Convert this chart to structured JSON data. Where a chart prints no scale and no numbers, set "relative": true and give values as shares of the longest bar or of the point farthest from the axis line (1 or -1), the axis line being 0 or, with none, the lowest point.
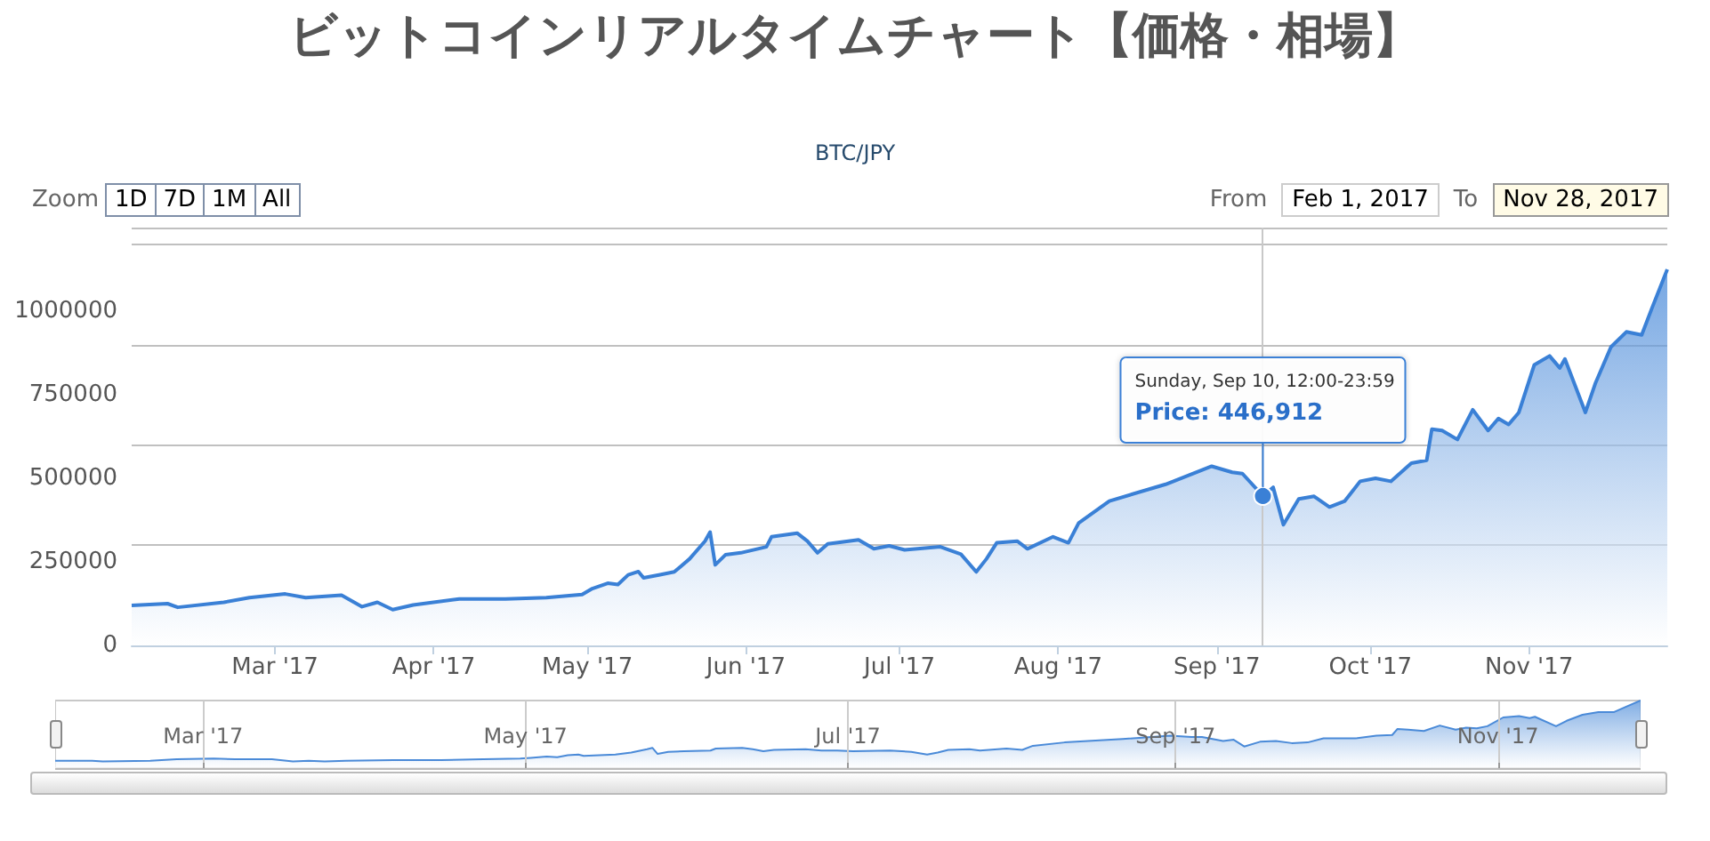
{
  "chart_data": [
    {
      "type": "area",
      "title": "ビットコインリアルタイムチャート【価格・相場】",
      "subtitle": "BTC/JPY",
      "x": [
        "2017-02-01",
        "2017-02-08",
        "2017-02-10",
        "2017-02-19",
        "2017-02-24",
        "2017-03-03",
        "2017-03-07",
        "2017-03-14",
        "2017-03-18",
        "2017-03-21",
        "2017-03-24",
        "2017-03-28",
        "2017-04-06",
        "2017-04-15",
        "2017-04-23",
        "2017-04-30",
        "2017-05-02",
        "2017-05-05",
        "2017-05-07",
        "2017-05-09",
        "2017-05-11",
        "2017-05-12",
        "2017-05-15",
        "2017-05-18",
        "2017-05-21",
        "2017-05-24",
        "2017-05-25",
        "2017-05-26",
        "2017-05-28",
        "2017-05-31",
        "2017-06-05",
        "2017-06-06",
        "2017-06-11",
        "2017-06-13",
        "2017-06-15",
        "2017-06-17",
        "2017-06-23",
        "2017-06-26",
        "2017-06-29",
        "2017-07-02",
        "2017-07-09",
        "2017-07-13",
        "2017-07-16",
        "2017-07-18",
        "2017-07-20",
        "2017-07-24",
        "2017-07-26",
        "2017-07-31",
        "2017-08-03",
        "2017-08-05",
        "2017-08-11",
        "2017-08-22",
        "2017-08-31",
        "2017-09-04",
        "2017-09-06",
        "2017-09-10",
        "2017-09-12",
        "2017-09-14",
        "2017-09-17",
        "2017-09-20",
        "2017-09-23",
        "2017-09-26",
        "2017-09-29",
        "2017-10-02",
        "2017-10-05",
        "2017-10-09",
        "2017-10-12",
        "2017-10-13",
        "2017-10-15",
        "2017-10-18",
        "2017-10-21",
        "2017-10-24",
        "2017-10-26",
        "2017-10-28",
        "2017-10-30",
        "2017-11-02",
        "2017-11-05",
        "2017-11-07",
        "2017-11-08",
        "2017-11-12",
        "2017-11-14",
        "2017-11-17",
        "2017-11-20",
        "2017-11-23",
        "2017-11-25",
        "2017-11-28"
      ],
      "series": [
        {
          "color": "#3a80d6",
          "values": [
            120000,
            125000,
            114000,
            129000,
            143000,
            154000,
            143000,
            150000,
            116000,
            129000,
            107000,
            121000,
            139000,
            139000,
            143000,
            152000,
            170000,
            186000,
            182000,
            211000,
            221000,
            202000,
            211000,
            220000,
            259000,
            312000,
            339000,
            241000,
            271000,
            277000,
            295000,
            325000,
            336000,
            312000,
            277000,
            304000,
            316000,
            289000,
            298000,
            286000,
            295000,
            273000,
            220000,
            259000,
            307000,
            312000,
            289000,
            325000,
            307000,
            366000,
            432000,
            482000,
            536000,
            518000,
            514000,
            446912,
            473000,
            361000,
            438000,
            446000,
            414000,
            432000,
            491000,
            500000,
            491000,
            545000,
            554000,
            647000,
            643000,
            616000,
            705000,
            643000,
            679000,
            661000,
            697000,
            839000,
            866000,
            830000,
            857000,
            697000,
            786000,
            893000,
            938000,
            929000,
            1009000,
            1125000
          ]
        }
      ],
      "xlim": [
        "2017-02-01",
        "2017-11-28"
      ],
      "xticks": [
        {
          "value": "2017-03-01",
          "label": "Mar '17"
        },
        {
          "value": "2017-04-01",
          "label": "Apr '17"
        },
        {
          "value": "2017-05-01",
          "label": "May '17"
        },
        {
          "value": "2017-06-01",
          "label": "Jun '17"
        },
        {
          "value": "2017-07-01",
          "label": "Jul '17"
        },
        {
          "value": "2017-08-01",
          "label": "Aug '17"
        },
        {
          "value": "2017-09-01",
          "label": "Sep '17"
        },
        {
          "value": "2017-10-01",
          "label": "Oct '17"
        },
        {
          "value": "2017-11-01",
          "label": "Nov '17"
        }
      ],
      "ylim": [
        0,
        1250000
      ],
      "yticks": [
        0,
        250000,
        500000,
        750000,
        1000000
      ],
      "grid": "y",
      "ref_lines": [
        {
          "axis": "x",
          "value": "2017-09-10",
          "color": "#c8c8c8"
        }
      ],
      "annotations": [
        "Zoom",
        "1D",
        "7D",
        "1M",
        "All",
        "From",
        "Feb 1, 2017",
        "To",
        "Nov 28, 2017",
        "Sunday, Sep 10, 12:00-23:59",
        {
          "text": "Price: 446,912",
          "x": "2017-09-10",
          "y": 446912
        }
      ]
    },
    {
      "type": "area",
      "relative": true,
      "x": [
        "2017-02-01",
        "2017-02-08",
        "2017-02-10",
        "2017-02-19",
        "2017-02-24",
        "2017-03-03",
        "2017-03-07",
        "2017-03-14",
        "2017-03-18",
        "2017-03-21",
        "2017-03-24",
        "2017-03-28",
        "2017-04-06",
        "2017-04-15",
        "2017-04-23",
        "2017-04-30",
        "2017-05-02",
        "2017-05-05",
        "2017-05-07",
        "2017-05-09",
        "2017-05-11",
        "2017-05-12",
        "2017-05-15",
        "2017-05-18",
        "2017-05-21",
        "2017-05-24",
        "2017-05-25",
        "2017-05-26",
        "2017-05-28",
        "2017-05-31",
        "2017-06-05",
        "2017-06-06",
        "2017-06-11",
        "2017-06-13",
        "2017-06-15",
        "2017-06-17",
        "2017-06-23",
        "2017-06-26",
        "2017-06-29",
        "2017-07-02",
        "2017-07-09",
        "2017-07-13",
        "2017-07-16",
        "2017-07-18",
        "2017-07-20",
        "2017-07-24",
        "2017-07-26",
        "2017-07-31",
        "2017-08-03",
        "2017-08-05",
        "2017-08-11",
        "2017-08-22",
        "2017-08-31",
        "2017-09-04",
        "2017-09-06",
        "2017-09-10",
        "2017-09-12",
        "2017-09-14",
        "2017-09-17",
        "2017-09-20",
        "2017-09-23",
        "2017-09-26",
        "2017-09-29",
        "2017-10-02",
        "2017-10-05",
        "2017-10-09",
        "2017-10-12",
        "2017-10-13",
        "2017-10-15",
        "2017-10-18",
        "2017-10-21",
        "2017-10-24",
        "2017-10-26",
        "2017-10-28",
        "2017-10-30",
        "2017-11-02",
        "2017-11-05",
        "2017-11-07",
        "2017-11-08",
        "2017-11-12",
        "2017-11-14",
        "2017-11-17",
        "2017-11-20",
        "2017-11-23",
        "2017-11-25",
        "2017-11-28"
      ],
      "series": [
        {
          "color": "#4a8ad8",
          "values": [
            0.11,
            0.11,
            0.1,
            0.11,
            0.13,
            0.14,
            0.13,
            0.13,
            0.1,
            0.11,
            0.1,
            0.11,
            0.12,
            0.12,
            0.13,
            0.14,
            0.15,
            0.17,
            0.16,
            0.19,
            0.2,
            0.18,
            0.19,
            0.2,
            0.23,
            0.28,
            0.3,
            0.21,
            0.24,
            0.25,
            0.26,
            0.29,
            0.3,
            0.28,
            0.25,
            0.27,
            0.28,
            0.26,
            0.26,
            0.25,
            0.26,
            0.24,
            0.2,
            0.23,
            0.27,
            0.28,
            0.26,
            0.29,
            0.27,
            0.33,
            0.38,
            0.43,
            0.48,
            0.46,
            0.46,
            0.4,
            0.42,
            0.32,
            0.39,
            0.4,
            0.37,
            0.38,
            0.44,
            0.44,
            0.44,
            0.48,
            0.49,
            0.58,
            0.57,
            0.55,
            0.63,
            0.57,
            0.6,
            0.59,
            0.62,
            0.75,
            0.77,
            0.74,
            0.76,
            0.62,
            0.7,
            0.79,
            0.83,
            0.83,
            0.9,
            1
          ]
        }
      ],
      "xlim": [
        "2017-02-01",
        "2017-11-28"
      ],
      "xticks": [
        {
          "value": "2017-03-01",
          "label": "Mar '17"
        },
        {
          "value": "2017-05-01",
          "label": "May '17"
        },
        {
          "value": "2017-07-01",
          "label": "Jul '17"
        },
        {
          "value": "2017-09-01",
          "label": "Sep '17"
        },
        {
          "value": "2017-11-01",
          "label": "Nov '17"
        }
      ],
      "grid": "x"
    }
  ]
}
